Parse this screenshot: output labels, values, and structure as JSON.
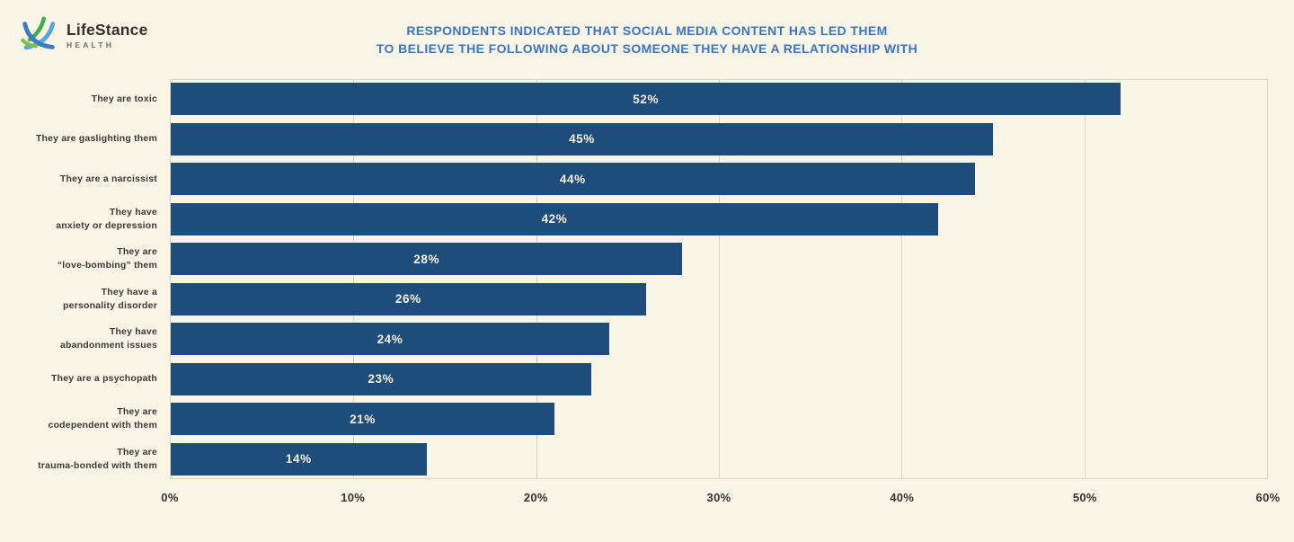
{
  "page": {
    "background": "#FAF5E6"
  },
  "logo": {
    "brand_part1": "Life",
    "brand_part2": "Stance",
    "brand_sub": "HEALTH",
    "icon": "lifestance-swoosh-icon",
    "icon_colors": {
      "blue": "#3a7bc8",
      "light_blue": "#56a6dc",
      "green": "#3fae49",
      "leaf_green": "#7cc242"
    }
  },
  "title": {
    "line1": "RESPONDENTS INDICATED THAT SOCIAL MEDIA CONTENT HAS LED THEM",
    "line2": "TO BELIEVE THE FOLLOWING ABOUT SOMEONE THEY HAVE A RELATIONSHIP WITH",
    "color": "#3B76C4"
  },
  "chart_data": {
    "type": "bar",
    "orientation": "horizontal",
    "title": "Respondents indicated that social media content has led them to believe the following about someone they have a relationship with",
    "categories": [
      "They are toxic",
      "They are gaslighting them",
      "They are a narcissist",
      "They have\nanxiety or depression",
      "They are\n“love-bombing” them",
      "They have a\npersonality disorder",
      "They have\nabandonment issues",
      "They are a psychopath",
      "They are\ncodependent with them",
      "They are\ntrauma-bonded with them"
    ],
    "values": [
      52,
      45,
      44,
      42,
      28,
      26,
      24,
      23,
      21,
      14
    ],
    "value_labels": [
      "52%",
      "45%",
      "44%",
      "42%",
      "28%",
      "26%",
      "24%",
      "23%",
      "21%",
      "14%"
    ],
    "xlabel": "",
    "ylabel": "",
    "xlim": [
      0,
      60
    ],
    "x_ticks": [
      "0%",
      "10%",
      "20%",
      "30%",
      "40%",
      "50%",
      "60%"
    ],
    "x_tick_values": [
      0,
      10,
      20,
      30,
      40,
      50,
      60
    ],
    "grid": "vertical",
    "bar_color": "#1E4D7C",
    "grid_color": "#DAD5C7",
    "value_label_color": "#f8f3e3",
    "legend": "none"
  }
}
